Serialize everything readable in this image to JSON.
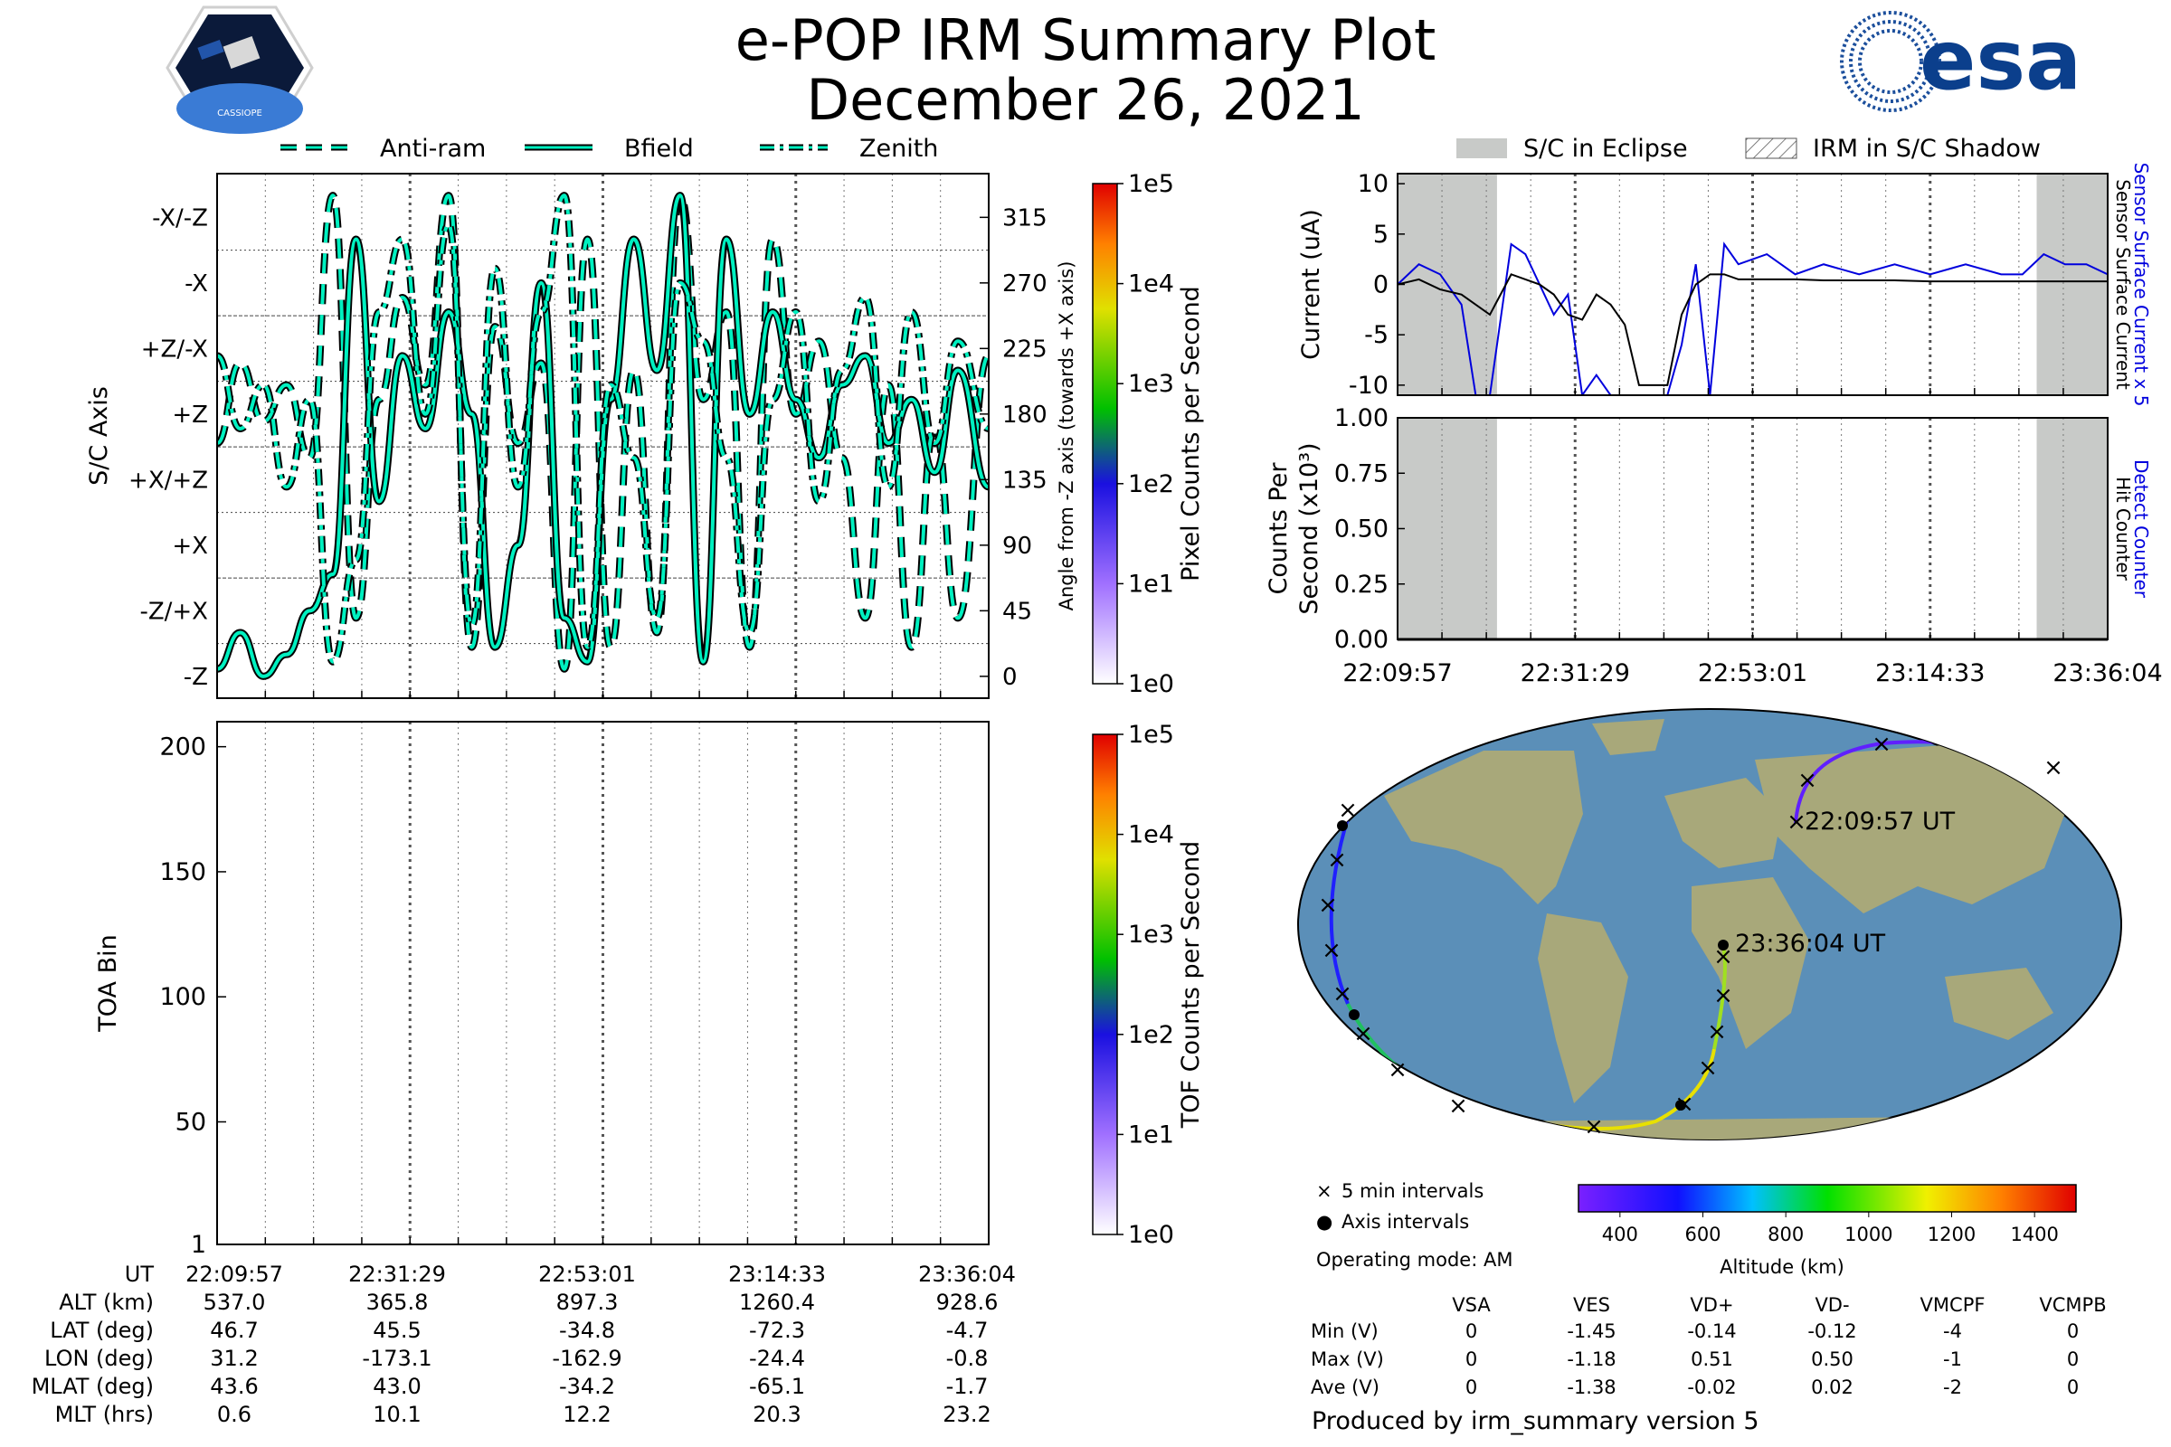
{
  "title": "e-POP IRM Summary Plot",
  "date": "December 26, 2021",
  "logos": {
    "cassiope_text": "CASSIOPE",
    "esa_text": "esa"
  },
  "legend_axis": [
    "Anti-ram",
    "Bfield",
    "Zenith"
  ],
  "legend_eclipse": [
    "S/C in Eclipse",
    "IRM in S/C Shadow"
  ],
  "colors": {
    "trace": "#00f0c0",
    "trace_edge": "#000000",
    "sensor": "#0000dd",
    "surface": "#000000",
    "eclipse": "#c8cac8"
  },
  "chart_data": [
    {
      "type": "line",
      "name": "sc_axis",
      "ylabel": "S/C Axis",
      "y_ticks_left": [
        "-X/-Z",
        "-X",
        "+Z/-X",
        "+Z",
        "+X/+Z",
        "+X",
        "-Z/+X",
        "-Z"
      ],
      "y2label": "Angle from -Z axis (towards +X axis)",
      "y2_ticks": [
        315,
        270,
        225,
        180,
        135,
        90,
        45,
        0
      ],
      "ylim": [
        -15,
        345
      ],
      "x": [
        0,
        0.03,
        0.06,
        0.09,
        0.12,
        0.15,
        0.18,
        0.21,
        0.24,
        0.27,
        0.3,
        0.33,
        0.36,
        0.39,
        0.42,
        0.45,
        0.48,
        0.51,
        0.54,
        0.57,
        0.6,
        0.63,
        0.66,
        0.69,
        0.72,
        0.75,
        0.78,
        0.81,
        0.84,
        0.87,
        0.9,
        0.93,
        0.96,
        1.0
      ],
      "series": [
        {
          "name": "Anti-ram",
          "values": [
            160,
            215,
            175,
            200,
            150,
            330,
            40,
            190,
            260,
            200,
            330,
            20,
            240,
            160,
            215,
            5,
            300,
            20,
            210,
            30,
            330,
            190,
            250,
            20,
            300,
            180,
            230,
            150,
            40,
            200,
            20,
            170,
            40,
            220
          ]
        },
        {
          "name": "Bfield",
          "values": [
            5,
            30,
            0,
            15,
            45,
            70,
            300,
            120,
            220,
            170,
            250,
            180,
            20,
            90,
            270,
            40,
            10,
            190,
            300,
            210,
            330,
            10,
            300,
            180,
            250,
            190,
            150,
            200,
            220,
            160,
            190,
            140,
            210,
            130
          ]
        },
        {
          "name": "Zenith",
          "values": [
            220,
            170,
            200,
            130,
            190,
            10,
            80,
            250,
            300,
            180,
            310,
            35,
            280,
            130,
            250,
            330,
            20,
            200,
            150,
            40,
            270,
            230,
            150,
            30,
            190,
            250,
            120,
            210,
            260,
            130,
            250,
            160,
            230,
            170
          ]
        }
      ]
    },
    {
      "type": "heatmap",
      "name": "toa",
      "ylabel": "TOA Bin",
      "y_ticks": [
        200,
        150,
        100,
        50,
        1
      ],
      "ylim": [
        1,
        210
      ],
      "values": []
    },
    {
      "type": "line",
      "name": "current",
      "ylabel": "Current (uA)",
      "y_ticks": [
        10,
        5,
        0,
        -5,
        -10
      ],
      "ylim": [
        -11,
        11
      ],
      "right_labels": [
        "Sensor Surface Current x 5",
        "Sensor Surface Current"
      ],
      "x": [
        0,
        0.03,
        0.06,
        0.09,
        0.11,
        0.13,
        0.16,
        0.18,
        0.2,
        0.22,
        0.24,
        0.26,
        0.28,
        0.3,
        0.32,
        0.34,
        0.36,
        0.38,
        0.4,
        0.42,
        0.44,
        0.46,
        0.48,
        0.52,
        0.56,
        0.6,
        0.65,
        0.7,
        0.75,
        0.8,
        0.85,
        0.88,
        0.91,
        0.94,
        0.97,
        1.0
      ],
      "series": [
        {
          "name": "Sensor Surface Current x 5",
          "values": [
            0,
            2,
            1,
            -2,
            -11,
            -11,
            4,
            3,
            0,
            -3,
            -1,
            -11,
            -9,
            -11,
            -11,
            -11,
            -11,
            -11,
            -6,
            2,
            -11,
            4,
            2,
            3,
            1,
            2,
            1,
            2,
            1,
            2,
            1,
            1,
            3,
            2,
            2,
            1
          ]
        },
        {
          "name": "Sensor Surface Current",
          "values": [
            0,
            0.5,
            -0.5,
            -1,
            -2,
            -3,
            1,
            0.5,
            0,
            -1,
            -3,
            -3.5,
            -1,
            -2,
            -4,
            -10,
            -10,
            -10,
            -3,
            0,
            1,
            1,
            0.5,
            0.5,
            0.5,
            0.4,
            0.4,
            0.4,
            0.3,
            0.3,
            0.3,
            0.3,
            0.3,
            0.3,
            0.3,
            0.3
          ]
        }
      ]
    },
    {
      "type": "line",
      "name": "counts",
      "ylabel": "Counts Per Second (x10³)",
      "y_ticks": [
        "1.00",
        "0.75",
        "0.50",
        "0.25",
        "0.00"
      ],
      "ylim": [
        0,
        1
      ],
      "right_labels": [
        "Detect Counter",
        "Hit Counter"
      ],
      "x": [
        0,
        1
      ],
      "series": [
        {
          "name": "Detect Counter",
          "values": [
            0,
            0
          ]
        },
        {
          "name": "Hit Counter",
          "values": [
            0,
            0
          ]
        }
      ]
    }
  ],
  "colorbar_pixel": {
    "label": "Pixel Counts per Second",
    "ticks": [
      "1e5",
      "1e4",
      "1e3",
      "1e2",
      "1e1",
      "1e0"
    ]
  },
  "colorbar_tof": {
    "label": "TOF Counts per Second",
    "ticks": [
      "1e5",
      "1e4",
      "1e3",
      "1e2",
      "1e1",
      "1e0"
    ]
  },
  "time_ticks": [
    "22:09:57",
    "22:31:29",
    "22:53:01",
    "23:14:33",
    "23:36:04"
  ],
  "eclipse_fraction": [
    [
      0,
      0.14
    ],
    [
      0.9,
      1.0
    ]
  ],
  "map": {
    "start_label": "22:09:57 UT",
    "end_label": "23:36:04 UT",
    "legend": [
      "5 min intervals",
      "Axis intervals"
    ],
    "mode": "Operating mode: AM",
    "altitude_label": "Altitude (km)",
    "altitude_ticks": [
      400,
      600,
      800,
      1000,
      1200,
      1400
    ]
  },
  "summary_table": {
    "row_labels": [
      "UT",
      "ALT (km)",
      "LAT (deg)",
      "LON (deg)",
      "MLAT (deg)",
      "MLT (hrs)"
    ],
    "columns": [
      [
        "22:09:57",
        "537.0",
        "46.7",
        "31.2",
        "43.6",
        "0.6"
      ],
      [
        "22:31:29",
        "365.8",
        "45.5",
        "-173.1",
        "43.0",
        "10.1"
      ],
      [
        "22:53:01",
        "897.3",
        "-34.8",
        "-162.9",
        "-34.2",
        "12.2"
      ],
      [
        "23:14:33",
        "1260.4",
        "-72.3",
        "-24.4",
        "-65.1",
        "20.3"
      ],
      [
        "23:36:04",
        "928.6",
        "-4.7",
        "-0.8",
        "-1.7",
        "23.2"
      ]
    ]
  },
  "voltage_table": {
    "headers": [
      "VSA",
      "VES",
      "VD+",
      "VD-",
      "VMCPF",
      "VCMPB"
    ],
    "rows": [
      {
        "label": "Min (V)",
        "values": [
          "0",
          "-1.45",
          "-0.14",
          "-0.12",
          "-4",
          "0"
        ]
      },
      {
        "label": "Max (V)",
        "values": [
          "0",
          "-1.18",
          "0.51",
          "0.50",
          "-1",
          "0"
        ]
      },
      {
        "label": "Ave (V)",
        "values": [
          "0",
          "-1.38",
          "-0.02",
          "0.02",
          "-2",
          "0"
        ]
      }
    ]
  },
  "footer": "Produced by irm_summary version 5"
}
